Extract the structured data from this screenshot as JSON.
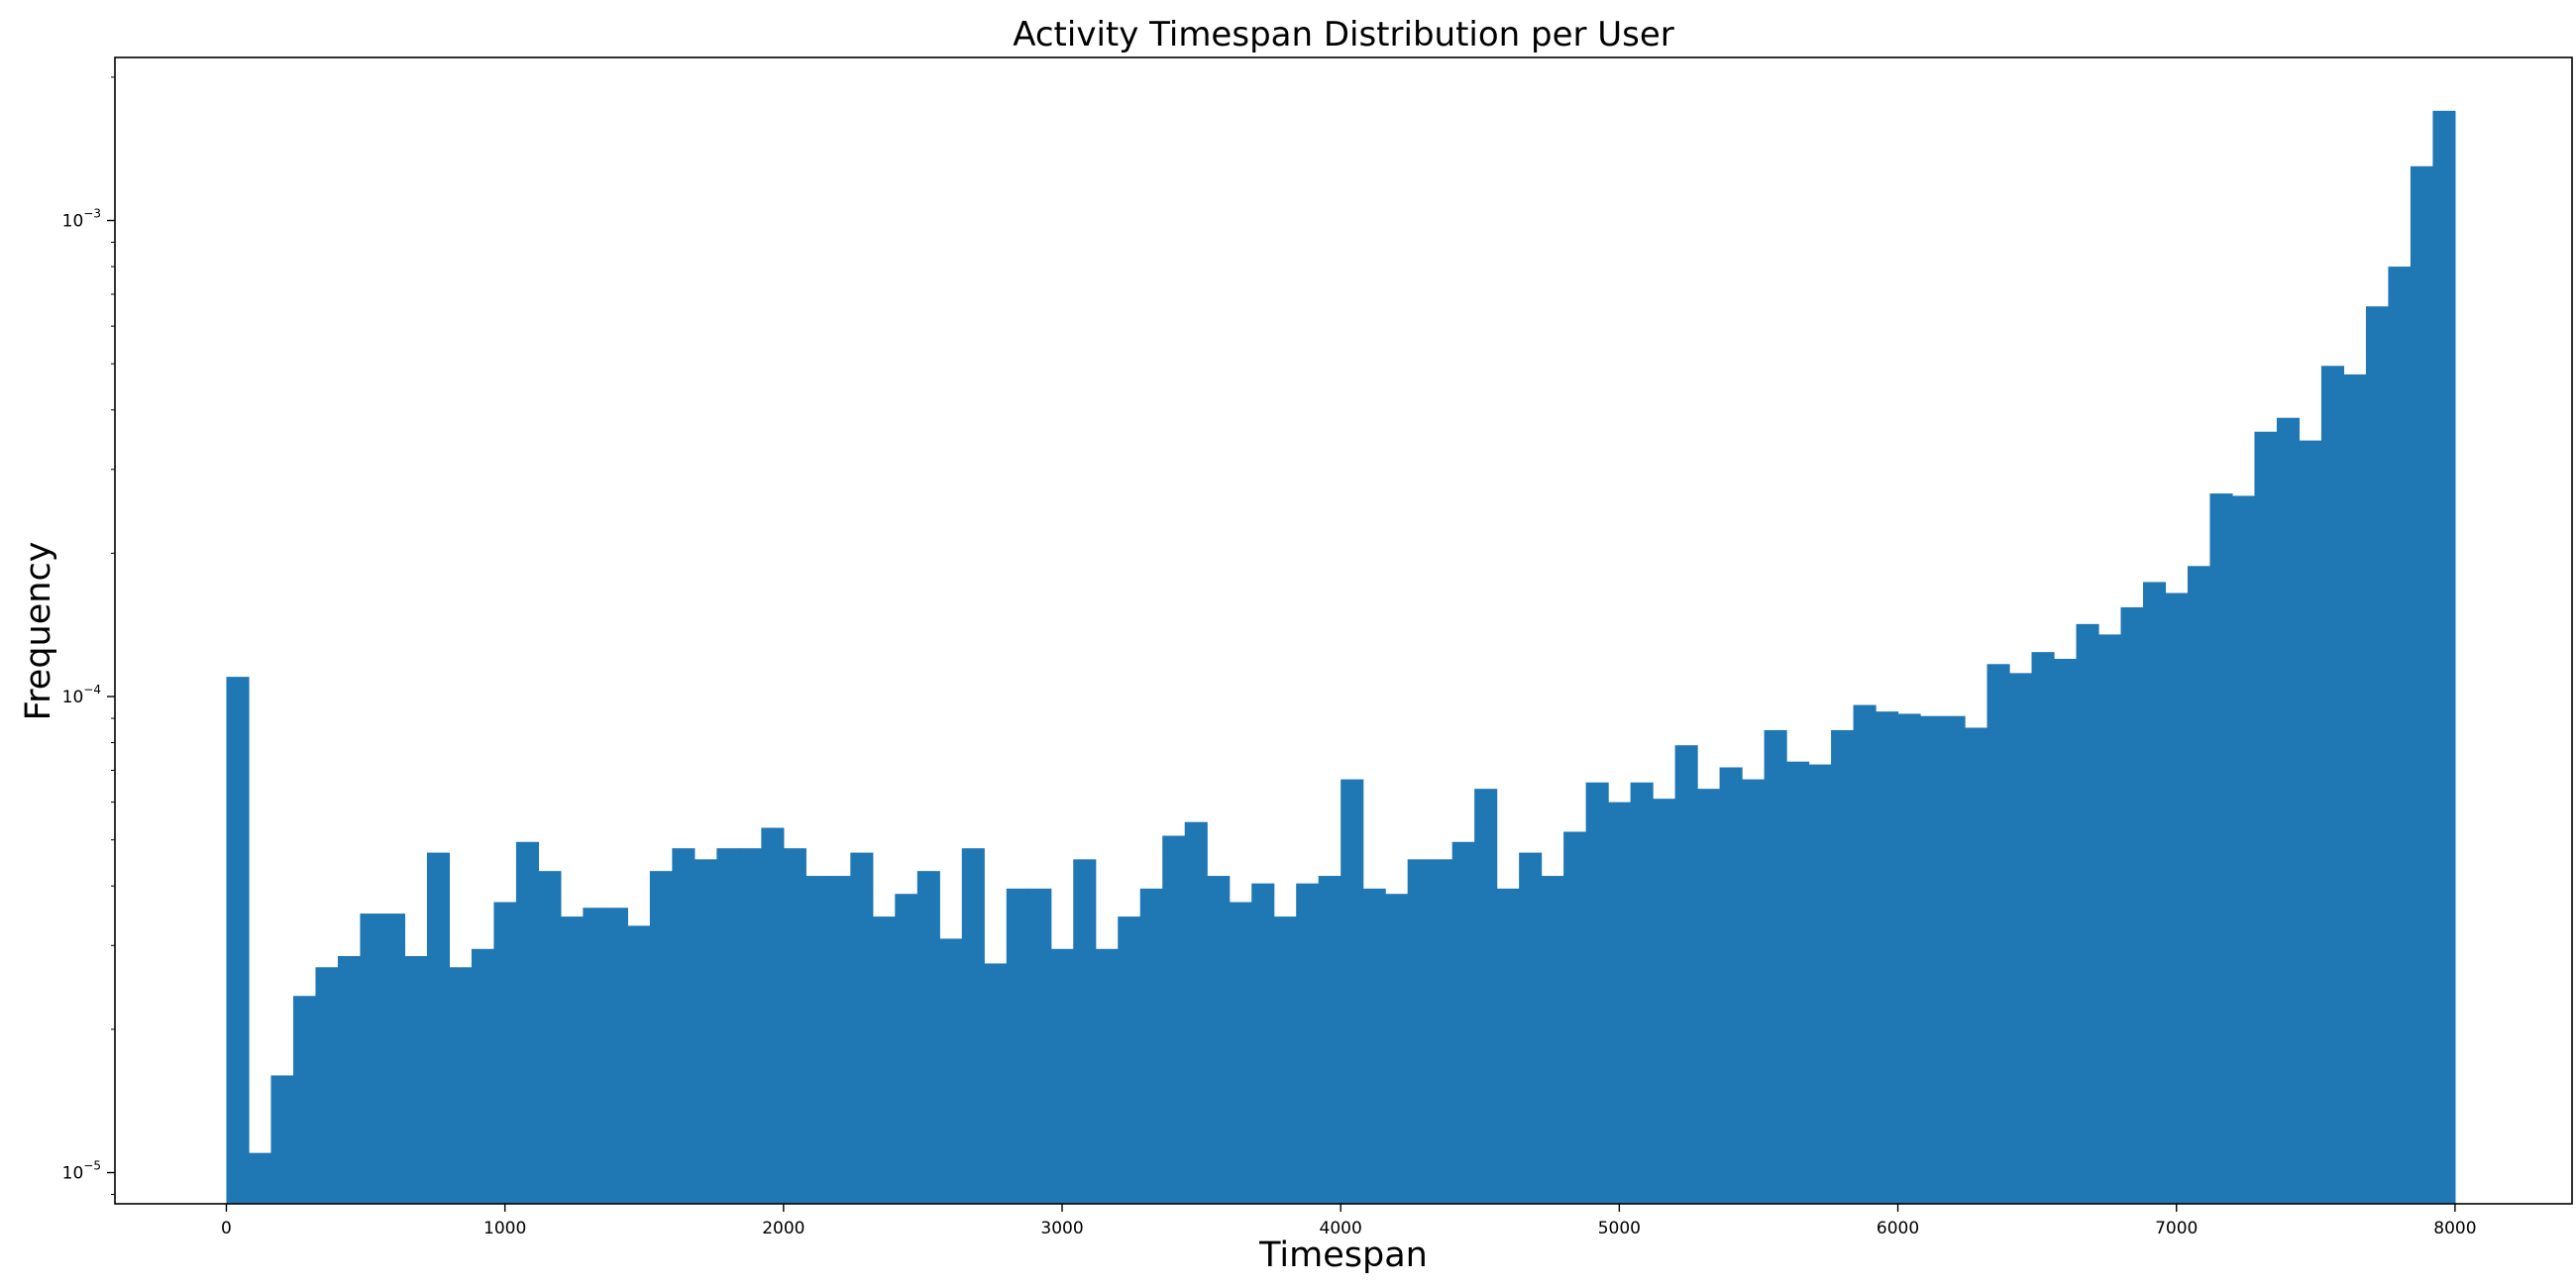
{
  "chart_data": {
    "type": "bar",
    "title": "Activity Timespan Distribution per User",
    "xlabel": "Timespan",
    "ylabel": "Frequency",
    "y_scale": "log",
    "bar_color": "#1f77b4",
    "grid": false,
    "legend": "none",
    "xlim": [
      -400,
      8420
    ],
    "ylim": [
      8.6e-06,
      0.0022
    ],
    "x_ticks": [
      {
        "value": 0,
        "label": "0"
      },
      {
        "value": 1000,
        "label": "1000"
      },
      {
        "value": 2000,
        "label": "2000"
      },
      {
        "value": 3000,
        "label": "3000"
      },
      {
        "value": 4000,
        "label": "4000"
      },
      {
        "value": 5000,
        "label": "5000"
      },
      {
        "value": 6000,
        "label": "6000"
      },
      {
        "value": 7000,
        "label": "7000"
      },
      {
        "value": 8000,
        "label": "8000"
      }
    ],
    "y_ticks": [
      {
        "value": 1e-05,
        "base": "10",
        "exp": "−5"
      },
      {
        "value": 0.0001,
        "base": "10",
        "exp": "−4"
      },
      {
        "value": 0.001,
        "base": "10",
        "exp": "−3"
      }
    ],
    "bin_start": 0,
    "bin_width": 80,
    "values": [
      0.00011,
      1.1e-05,
      1.6e-05,
      2.35e-05,
      2.7e-05,
      2.85e-05,
      3.5e-05,
      3.5e-05,
      2.85e-05,
      4.7e-05,
      2.7e-05,
      2.95e-05,
      3.7e-05,
      4.95e-05,
      4.3e-05,
      3.45e-05,
      3.6e-05,
      3.6e-05,
      3.3e-05,
      4.3e-05,
      4.8e-05,
      4.55e-05,
      4.8e-05,
      4.8e-05,
      5.3e-05,
      4.8e-05,
      4.2e-05,
      4.2e-05,
      4.7e-05,
      3.45e-05,
      3.85e-05,
      4.3e-05,
      3.1e-05,
      4.8e-05,
      2.75e-05,
      3.95e-05,
      3.95e-05,
      2.95e-05,
      4.55e-05,
      2.95e-05,
      3.45e-05,
      3.95e-05,
      5.1e-05,
      5.45e-05,
      4.2e-05,
      3.7e-05,
      4.05e-05,
      3.45e-05,
      4.05e-05,
      4.2e-05,
      6.7e-05,
      3.95e-05,
      3.85e-05,
      4.55e-05,
      4.55e-05,
      4.95e-05,
      6.4e-05,
      3.95e-05,
      4.7e-05,
      4.2e-05,
      5.2e-05,
      6.6e-05,
      6e-05,
      6.6e-05,
      6.1e-05,
      7.9e-05,
      6.4e-05,
      7.1e-05,
      6.7e-05,
      8.5e-05,
      7.3e-05,
      7.2e-05,
      8.5e-05,
      9.6e-05,
      9.3e-05,
      9.2e-05,
      9.1e-05,
      9.1e-05,
      8.6e-05,
      0.000117,
      0.000112,
      0.000124,
      0.00012,
      0.000142,
      0.000135,
      0.000154,
      0.000174,
      0.000165,
      0.000188,
      0.000267,
      0.000264,
      0.00036,
      0.000385,
      0.000345,
      0.000495,
      0.000475,
      0.00066,
      0.0008,
      0.0013,
      0.0017
    ]
  }
}
